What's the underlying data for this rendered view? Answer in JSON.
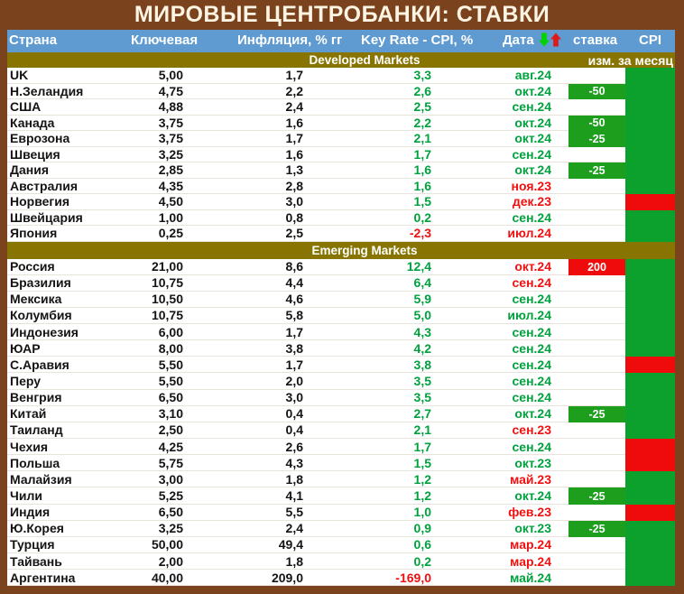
{
  "title": "МИРОВЫЕ ЦЕНТРОБАНКИ: СТАВКИ",
  "header": {
    "country": "Страна",
    "key_rate": "Ключевая",
    "inflation": "Инфляция, % гг",
    "rate_minus_cpi": "Key Rate - CPI, %",
    "date": "Дата",
    "rate_change": "ставка",
    "cpi": "CPI",
    "icons": [
      "green-down-arrow",
      "red-up-arrow"
    ]
  },
  "colors": {
    "background_brown": "#7a431e",
    "header_blue": "#5f9bd0",
    "section_olive": "#887501",
    "green_text": "#00a13e",
    "red_text": "#f01010",
    "badge_green": "#1d9e1d",
    "badge_red": "#ef0b0b",
    "cpi_green": "#0ba12c",
    "cpi_red": "#ef0b0b",
    "arrow_green": "#00d400",
    "arrow_red": "#e01818"
  },
  "chart_data": {
    "type": "table",
    "title": "МИРОВЫЕ ЦЕНТРОБАНКИ: СТАВКИ",
    "columns": [
      "Страна",
      "Ключевая",
      "Инфляция, % гг",
      "Key Rate - CPI, %",
      "Дата",
      "ставка изм. за месяц",
      "CPI изм. за месяц"
    ],
    "sections": [
      {
        "label": "Developed Markets",
        "right_note": "изм. за месяц",
        "rows": [
          {
            "country": "UK",
            "key": "5,00",
            "cpi_yoy": "1,7",
            "diff": "3,3",
            "diff_c": "g",
            "date": "авг.24",
            "date_c": "g",
            "chg": "",
            "chg_c": "",
            "cpi_chg": "g"
          },
          {
            "country": "Н.Зеландия",
            "key": "4,75",
            "cpi_yoy": "2,2",
            "diff": "2,6",
            "diff_c": "g",
            "date": "окт.24",
            "date_c": "g",
            "chg": "-50",
            "chg_c": "g",
            "cpi_chg": "g"
          },
          {
            "country": "США",
            "key": "4,88",
            "cpi_yoy": "2,4",
            "diff": "2,5",
            "diff_c": "g",
            "date": "сен.24",
            "date_c": "g",
            "chg": "",
            "chg_c": "",
            "cpi_chg": "g"
          },
          {
            "country": "Канада",
            "key": "3,75",
            "cpi_yoy": "1,6",
            "diff": "2,2",
            "diff_c": "g",
            "date": "окт.24",
            "date_c": "g",
            "chg": "-50",
            "chg_c": "g",
            "cpi_chg": "g"
          },
          {
            "country": "Еврозона",
            "key": "3,75",
            "cpi_yoy": "1,7",
            "diff": "2,1",
            "diff_c": "g",
            "date": "окт.24",
            "date_c": "g",
            "chg": "-25",
            "chg_c": "g",
            "cpi_chg": "g"
          },
          {
            "country": "Швеция",
            "key": "3,25",
            "cpi_yoy": "1,6",
            "diff": "1,7",
            "diff_c": "g",
            "date": "сен.24",
            "date_c": "g",
            "chg": "",
            "chg_c": "",
            "cpi_chg": "g"
          },
          {
            "country": "Дания",
            "key": "2,85",
            "cpi_yoy": "1,3",
            "diff": "1,6",
            "diff_c": "g",
            "date": "окт.24",
            "date_c": "g",
            "chg": "-25",
            "chg_c": "g",
            "cpi_chg": "g"
          },
          {
            "country": "Австралия",
            "key": "4,35",
            "cpi_yoy": "2,8",
            "diff": "1,6",
            "diff_c": "g",
            "date": "ноя.23",
            "date_c": "r",
            "chg": "",
            "chg_c": "",
            "cpi_chg": "g"
          },
          {
            "country": "Норвегия",
            "key": "4,50",
            "cpi_yoy": "3,0",
            "diff": "1,5",
            "diff_c": "g",
            "date": "дек.23",
            "date_c": "r",
            "chg": "",
            "chg_c": "",
            "cpi_chg": "r"
          },
          {
            "country": "Швейцария",
            "key": "1,00",
            "cpi_yoy": "0,8",
            "diff": "0,2",
            "diff_c": "g",
            "date": "сен.24",
            "date_c": "g",
            "chg": "",
            "chg_c": "",
            "cpi_chg": "g"
          },
          {
            "country": "Япония",
            "key": "0,25",
            "cpi_yoy": "2,5",
            "diff": "-2,3",
            "diff_c": "r",
            "date": "июл.24",
            "date_c": "r",
            "chg": "",
            "chg_c": "",
            "cpi_chg": "g"
          }
        ]
      },
      {
        "label": "Emerging Markets",
        "right_note": "",
        "rows": [
          {
            "country": "Россия",
            "key": "21,00",
            "cpi_yoy": "8,6",
            "diff": "12,4",
            "diff_c": "g",
            "date": "окт.24",
            "date_c": "r",
            "chg": "200",
            "chg_c": "r",
            "cpi_chg": "g"
          },
          {
            "country": "Бразилия",
            "key": "10,75",
            "cpi_yoy": "4,4",
            "diff": "6,4",
            "diff_c": "g",
            "date": "сен.24",
            "date_c": "r",
            "chg": "",
            "chg_c": "",
            "cpi_chg": "g"
          },
          {
            "country": "Мексика",
            "key": "10,50",
            "cpi_yoy": "4,6",
            "diff": "5,9",
            "diff_c": "g",
            "date": "сен.24",
            "date_c": "g",
            "chg": "",
            "chg_c": "",
            "cpi_chg": "g"
          },
          {
            "country": "Колумбия",
            "key": "10,75",
            "cpi_yoy": "5,8",
            "diff": "5,0",
            "diff_c": "g",
            "date": "июл.24",
            "date_c": "g",
            "chg": "",
            "chg_c": "",
            "cpi_chg": "g"
          },
          {
            "country": "Индонезия",
            "key": "6,00",
            "cpi_yoy": "1,7",
            "diff": "4,3",
            "diff_c": "g",
            "date": "сен.24",
            "date_c": "g",
            "chg": "",
            "chg_c": "",
            "cpi_chg": "g"
          },
          {
            "country": "ЮАР",
            "key": "8,00",
            "cpi_yoy": "3,8",
            "diff": "4,2",
            "diff_c": "g",
            "date": "сен.24",
            "date_c": "g",
            "chg": "",
            "chg_c": "",
            "cpi_chg": "g"
          },
          {
            "country": "С.Аравия",
            "key": "5,50",
            "cpi_yoy": "1,7",
            "diff": "3,8",
            "diff_c": "g",
            "date": "сен.24",
            "date_c": "g",
            "chg": "",
            "chg_c": "",
            "cpi_chg": "r"
          },
          {
            "country": "Перу",
            "key": "5,50",
            "cpi_yoy": "2,0",
            "diff": "3,5",
            "diff_c": "g",
            "date": "сен.24",
            "date_c": "g",
            "chg": "",
            "chg_c": "",
            "cpi_chg": "g"
          },
          {
            "country": "Венгрия",
            "key": "6,50",
            "cpi_yoy": "3,0",
            "diff": "3,5",
            "diff_c": "g",
            "date": "сен.24",
            "date_c": "g",
            "chg": "",
            "chg_c": "",
            "cpi_chg": "g"
          },
          {
            "country": "Китай",
            "key": "3,10",
            "cpi_yoy": "0,4",
            "diff": "2,7",
            "diff_c": "g",
            "date": "окт.24",
            "date_c": "g",
            "chg": "-25",
            "chg_c": "g",
            "cpi_chg": "g"
          },
          {
            "country": "Таиланд",
            "key": "2,50",
            "cpi_yoy": "0,4",
            "diff": "2,1",
            "diff_c": "g",
            "date": "сен.23",
            "date_c": "r",
            "chg": "",
            "chg_c": "",
            "cpi_chg": "g"
          },
          {
            "country": "Чехия",
            "key": "4,25",
            "cpi_yoy": "2,6",
            "diff": "1,7",
            "diff_c": "g",
            "date": "сен.24",
            "date_c": "g",
            "chg": "",
            "chg_c": "",
            "cpi_chg": "r"
          },
          {
            "country": "Польша",
            "key": "5,75",
            "cpi_yoy": "4,3",
            "diff": "1,5",
            "diff_c": "g",
            "date": "окт.23",
            "date_c": "g",
            "chg": "",
            "chg_c": "",
            "cpi_chg": "r"
          },
          {
            "country": "Малайзия",
            "key": "3,00",
            "cpi_yoy": "1,8",
            "diff": "1,2",
            "diff_c": "g",
            "date": "май.23",
            "date_c": "r",
            "chg": "",
            "chg_c": "",
            "cpi_chg": "g"
          },
          {
            "country": "Чили",
            "key": "5,25",
            "cpi_yoy": "4,1",
            "diff": "1,2",
            "diff_c": "g",
            "date": "окт.24",
            "date_c": "g",
            "chg": "-25",
            "chg_c": "g",
            "cpi_chg": "g"
          },
          {
            "country": "Индия",
            "key": "6,50",
            "cpi_yoy": "5,5",
            "diff": "1,0",
            "diff_c": "g",
            "date": "фев.23",
            "date_c": "r",
            "chg": "",
            "chg_c": "",
            "cpi_chg": "r"
          },
          {
            "country": "Ю.Корея",
            "key": "3,25",
            "cpi_yoy": "2,4",
            "diff": "0,9",
            "diff_c": "g",
            "date": "окт.23",
            "date_c": "g",
            "chg": "-25",
            "chg_c": "g",
            "cpi_chg": "g"
          },
          {
            "country": "Турция",
            "key": "50,00",
            "cpi_yoy": "49,4",
            "diff": "0,6",
            "diff_c": "g",
            "date": "мар.24",
            "date_c": "r",
            "chg": "",
            "chg_c": "",
            "cpi_chg": "g"
          },
          {
            "country": "Тайвань",
            "key": "2,00",
            "cpi_yoy": "1,8",
            "diff": "0,2",
            "diff_c": "g",
            "date": "мар.24",
            "date_c": "r",
            "chg": "",
            "chg_c": "",
            "cpi_chg": "g"
          },
          {
            "country": "Аргентина",
            "key": "40,00",
            "cpi_yoy": "209,0",
            "diff": "-169,0",
            "diff_c": "r",
            "date": "май.24",
            "date_c": "g",
            "chg": "",
            "chg_c": "",
            "cpi_chg": "g"
          }
        ]
      }
    ]
  }
}
